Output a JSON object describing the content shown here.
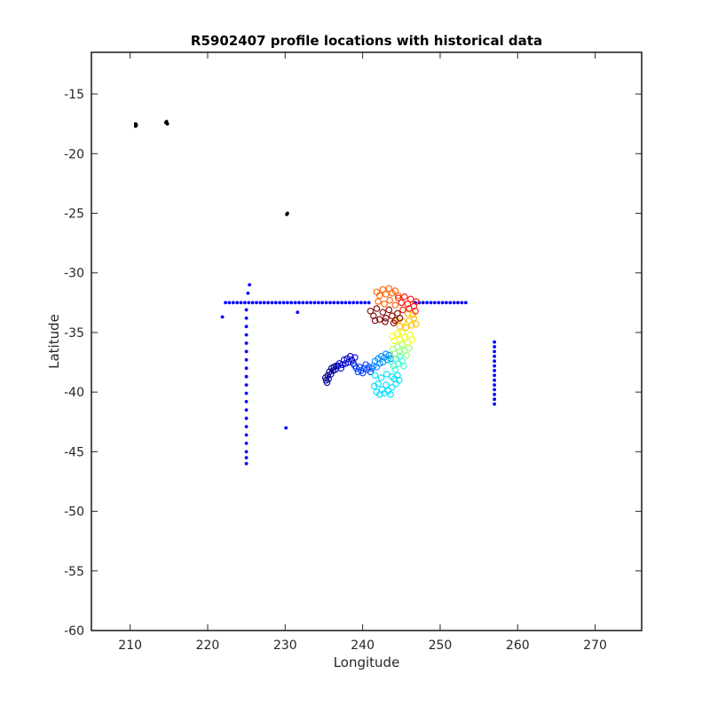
{
  "chart_data": {
    "type": "scatter",
    "title": "R5902407 profile locations with historical data",
    "xlabel": "Longitude",
    "ylabel": "Latitude",
    "xlim": [
      205,
      276
    ],
    "ylim": [
      -60,
      -11.5
    ],
    "xticks": [
      210,
      220,
      230,
      240,
      250,
      260,
      270
    ],
    "yticks": [
      -60,
      -55,
      -50,
      -45,
      -40,
      -35,
      -30,
      -25,
      -20,
      -15
    ],
    "grid": false,
    "legend": "none",
    "series": [
      {
        "marker_color": "#000000",
        "points": [
          [
            210.7,
            -17.5
          ],
          [
            210.7,
            -17.7
          ],
          [
            210.8,
            -17.6
          ],
          [
            214.7,
            -17.3
          ],
          [
            214.8,
            -17.5
          ],
          [
            214.6,
            -17.4
          ],
          [
            230.2,
            -25.1
          ],
          [
            230.3,
            -25.0
          ]
        ]
      },
      {
        "marker_color": "#0000ff",
        "points": [
          [
            222.3,
            -32.5
          ],
          [
            222.8,
            -32.5
          ],
          [
            223.3,
            -32.5
          ],
          [
            223.8,
            -32.5
          ],
          [
            224.3,
            -32.5
          ],
          [
            224.8,
            -32.5
          ],
          [
            225.3,
            -32.5
          ],
          [
            225.8,
            -32.5
          ],
          [
            226.3,
            -32.5
          ],
          [
            226.8,
            -32.5
          ],
          [
            227.3,
            -32.5
          ],
          [
            227.8,
            -32.5
          ],
          [
            228.3,
            -32.5
          ],
          [
            228.8,
            -32.5
          ],
          [
            229.3,
            -32.5
          ],
          [
            229.8,
            -32.5
          ],
          [
            230.3,
            -32.5
          ],
          [
            230.8,
            -32.5
          ],
          [
            231.3,
            -32.5
          ],
          [
            231.8,
            -32.5
          ],
          [
            232.3,
            -32.5
          ],
          [
            232.8,
            -32.5
          ],
          [
            233.3,
            -32.5
          ],
          [
            233.8,
            -32.5
          ],
          [
            234.3,
            -32.5
          ],
          [
            234.8,
            -32.5
          ],
          [
            235.3,
            -32.5
          ],
          [
            235.8,
            -32.5
          ],
          [
            236.3,
            -32.5
          ],
          [
            236.8,
            -32.5
          ],
          [
            237.3,
            -32.5
          ],
          [
            237.8,
            -32.5
          ],
          [
            238.3,
            -32.5
          ],
          [
            238.8,
            -32.5
          ],
          [
            239.3,
            -32.5
          ],
          [
            239.8,
            -32.5
          ],
          [
            240.3,
            -32.5
          ],
          [
            240.8,
            -32.5
          ],
          [
            246.8,
            -32.5
          ],
          [
            247.3,
            -32.5
          ],
          [
            247.8,
            -32.5
          ],
          [
            248.3,
            -32.5
          ],
          [
            248.8,
            -32.5
          ],
          [
            249.3,
            -32.5
          ],
          [
            249.8,
            -32.5
          ],
          [
            250.3,
            -32.5
          ],
          [
            250.8,
            -32.5
          ],
          [
            251.3,
            -32.5
          ],
          [
            251.8,
            -32.5
          ],
          [
            252.3,
            -32.5
          ],
          [
            252.8,
            -32.5
          ],
          [
            253.3,
            -32.5
          ],
          [
            221.9,
            -33.7
          ],
          [
            225.2,
            -31.7
          ],
          [
            225.4,
            -31.0
          ],
          [
            231.6,
            -33.3
          ],
          [
            230.1,
            -43.0
          ],
          [
            225.0,
            -33.1
          ],
          [
            225.0,
            -33.8
          ],
          [
            225.0,
            -34.5
          ],
          [
            225.0,
            -35.2
          ],
          [
            225.0,
            -35.9
          ],
          [
            225.0,
            -36.6
          ],
          [
            225.0,
            -37.3
          ],
          [
            225.0,
            -38.0
          ],
          [
            225.0,
            -38.7
          ],
          [
            225.0,
            -39.4
          ],
          [
            225.0,
            -40.1
          ],
          [
            225.0,
            -40.8
          ],
          [
            225.0,
            -41.5
          ],
          [
            225.0,
            -42.2
          ],
          [
            225.0,
            -42.9
          ],
          [
            225.0,
            -43.6
          ],
          [
            225.0,
            -44.3
          ],
          [
            225.0,
            -45.0
          ],
          [
            225.0,
            -45.5
          ],
          [
            225.0,
            -46.0
          ],
          [
            257.0,
            -35.8
          ],
          [
            257.0,
            -36.2
          ],
          [
            257.0,
            -36.6
          ],
          [
            257.0,
            -37.0
          ],
          [
            257.0,
            -37.4
          ],
          [
            257.0,
            -37.8
          ],
          [
            257.0,
            -38.2
          ],
          [
            257.0,
            -38.6
          ],
          [
            257.0,
            -39.0
          ],
          [
            257.0,
            -39.4
          ],
          [
            257.0,
            -39.8
          ],
          [
            257.0,
            -40.2
          ],
          [
            257.0,
            -40.6
          ],
          [
            257.0,
            -41.0
          ]
        ]
      },
      {
        "marker_color": "#00008f",
        "points": [
          [
            235.2,
            -38.8
          ],
          [
            235.3,
            -39.0
          ],
          [
            235.4,
            -39.2
          ],
          [
            235.5,
            -38.6
          ],
          [
            235.6,
            -38.9
          ],
          [
            235.7,
            -38.3
          ],
          [
            235.9,
            -38.5
          ],
          [
            236.0,
            -38.0
          ],
          [
            236.2,
            -38.2
          ],
          [
            236.3,
            -37.9
          ],
          [
            236.5,
            -38.1
          ],
          [
            236.6,
            -37.8
          ]
        ]
      },
      {
        "marker_color": "#0000cf",
        "points": [
          [
            236.8,
            -37.8
          ],
          [
            237.0,
            -37.6
          ],
          [
            237.2,
            -38.0
          ],
          [
            237.4,
            -37.7
          ],
          [
            237.6,
            -37.3
          ],
          [
            237.8,
            -37.6
          ],
          [
            238.0,
            -37.2
          ],
          [
            238.2,
            -37.5
          ],
          [
            238.4,
            -37.0
          ],
          [
            238.6,
            -37.3
          ],
          [
            238.8,
            -37.6
          ],
          [
            239.0,
            -37.1
          ]
        ]
      },
      {
        "marker_color": "#0040ff",
        "points": [
          [
            239.0,
            -37.8
          ],
          [
            239.2,
            -38.0
          ],
          [
            239.4,
            -38.3
          ],
          [
            239.6,
            -37.9
          ],
          [
            239.8,
            -38.2
          ],
          [
            240.0,
            -38.4
          ],
          [
            240.2,
            -38.0
          ],
          [
            240.4,
            -37.7
          ],
          [
            240.6,
            -38.1
          ],
          [
            240.8,
            -37.9
          ],
          [
            241.0,
            -38.3
          ],
          [
            241.2,
            -38.0
          ]
        ]
      },
      {
        "marker_color": "#0090ff",
        "points": [
          [
            241.4,
            -37.8
          ],
          [
            241.6,
            -37.4
          ],
          [
            241.8,
            -37.9
          ],
          [
            242.0,
            -37.2
          ],
          [
            242.2,
            -37.6
          ],
          [
            242.4,
            -37.0
          ],
          [
            242.6,
            -37.5
          ],
          [
            242.8,
            -37.1
          ],
          [
            243.0,
            -36.8
          ],
          [
            243.2,
            -37.3
          ],
          [
            243.4,
            -36.9
          ],
          [
            243.6,
            -37.2
          ]
        ]
      },
      {
        "marker_color": "#00dfff",
        "points": [
          [
            241.5,
            -39.5
          ],
          [
            241.8,
            -40.0
          ],
          [
            242.0,
            -39.3
          ],
          [
            242.2,
            -40.2
          ],
          [
            242.5,
            -39.8
          ],
          [
            242.8,
            -40.1
          ],
          [
            243.0,
            -39.4
          ],
          [
            243.3,
            -39.9
          ],
          [
            243.6,
            -40.2
          ],
          [
            243.8,
            -39.6
          ],
          [
            244.1,
            -38.9
          ],
          [
            244.3,
            -39.3
          ],
          [
            244.5,
            -38.6
          ],
          [
            244.7,
            -39.0
          ],
          [
            241.6,
            -38.6
          ],
          [
            242.4,
            -38.8
          ],
          [
            243.1,
            -38.5
          ],
          [
            243.8,
            -38.7
          ]
        ]
      },
      {
        "marker_color": "#30ffcf",
        "points": [
          [
            243.6,
            -37.4
          ],
          [
            244.0,
            -37.8
          ],
          [
            244.3,
            -37.2
          ],
          [
            244.6,
            -37.6
          ],
          [
            244.8,
            -37.0
          ],
          [
            245.1,
            -37.4
          ],
          [
            245.3,
            -37.8
          ],
          [
            244.2,
            -38.1
          ]
        ]
      },
      {
        "marker_color": "#8fff70",
        "points": [
          [
            243.9,
            -36.4
          ],
          [
            244.2,
            -36.8
          ],
          [
            244.5,
            -36.2
          ],
          [
            244.8,
            -36.6
          ],
          [
            245.1,
            -36.0
          ],
          [
            245.4,
            -36.5
          ],
          [
            245.7,
            -36.9
          ],
          [
            246.0,
            -36.3
          ]
        ]
      },
      {
        "marker_color": "#efff10",
        "points": [
          [
            243.8,
            -35.3
          ],
          [
            244.1,
            -35.7
          ],
          [
            244.5,
            -35.1
          ],
          [
            244.8,
            -35.6
          ],
          [
            245.1,
            -35.0
          ],
          [
            245.4,
            -35.4
          ],
          [
            245.8,
            -35.8
          ],
          [
            246.1,
            -35.2
          ],
          [
            246.4,
            -35.6
          ]
        ]
      },
      {
        "marker_color": "#ffbf00",
        "points": [
          [
            244.4,
            -34.0
          ],
          [
            244.8,
            -34.5
          ],
          [
            245.2,
            -34.1
          ],
          [
            245.6,
            -34.6
          ],
          [
            246.0,
            -34.0
          ],
          [
            246.3,
            -34.4
          ],
          [
            246.6,
            -33.8
          ],
          [
            246.9,
            -34.3
          ],
          [
            246.5,
            -33.5
          ],
          [
            245.8,
            -33.4
          ]
        ]
      },
      {
        "marker_color": "#ff6000",
        "points": [
          [
            241.8,
            -31.6
          ],
          [
            242.2,
            -31.9
          ],
          [
            242.6,
            -31.4
          ],
          [
            243.0,
            -31.8
          ],
          [
            243.4,
            -31.3
          ],
          [
            243.8,
            -31.7
          ],
          [
            244.2,
            -31.5
          ],
          [
            244.6,
            -31.9
          ],
          [
            242.0,
            -32.4
          ],
          [
            242.8,
            -32.6
          ],
          [
            243.5,
            -32.3
          ],
          [
            244.2,
            -32.7
          ]
        ]
      },
      {
        "marker_color": "#ff1000",
        "points": [
          [
            244.6,
            -32.1
          ],
          [
            245.0,
            -32.5
          ],
          [
            245.4,
            -32.0
          ],
          [
            245.8,
            -32.6
          ],
          [
            246.2,
            -32.2
          ],
          [
            246.6,
            -32.8
          ],
          [
            246.9,
            -32.4
          ],
          [
            245.2,
            -33.1
          ],
          [
            246.0,
            -33.0
          ],
          [
            246.8,
            -33.2
          ]
        ]
      },
      {
        "marker_color": "#800000",
        "points": [
          [
            241.0,
            -33.2
          ],
          [
            241.4,
            -33.6
          ],
          [
            241.8,
            -33.0
          ],
          [
            242.2,
            -33.9
          ],
          [
            242.6,
            -33.3
          ],
          [
            243.0,
            -33.8
          ],
          [
            243.4,
            -33.1
          ],
          [
            243.8,
            -33.6
          ],
          [
            244.2,
            -34.0
          ],
          [
            244.5,
            -33.4
          ],
          [
            244.8,
            -33.8
          ],
          [
            241.6,
            -34.0
          ],
          [
            242.9,
            -34.1
          ],
          [
            244.0,
            -34.2
          ]
        ]
      }
    ]
  }
}
